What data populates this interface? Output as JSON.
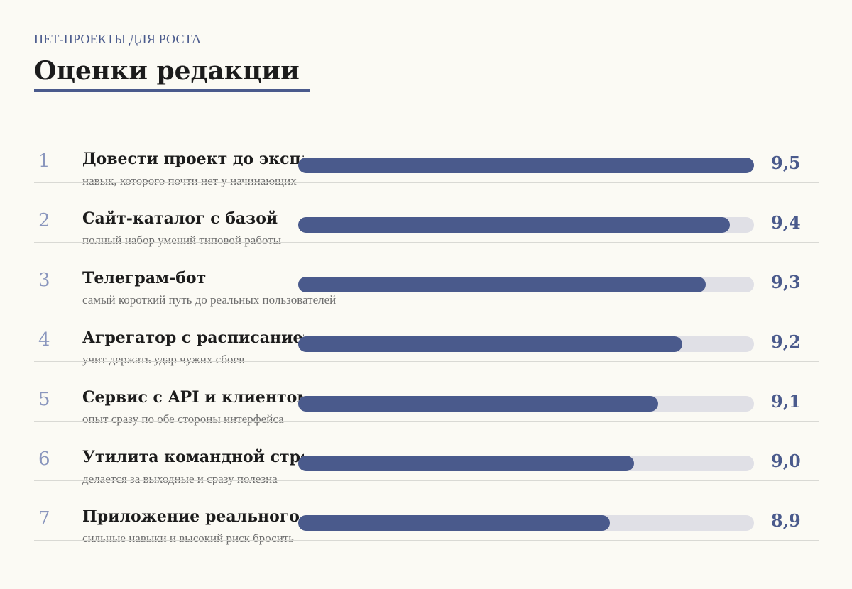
{
  "header": {
    "kicker": "Пет-проекты для роста",
    "title": "Оценки редакции"
  },
  "colors": {
    "accent": "#4a5a8c",
    "track": "#e0e0e6",
    "rank": "#8a96bd",
    "background": "#fbfaf4"
  },
  "chart_data": {
    "type": "bar",
    "orientation": "horizontal",
    "title": "Оценки редакции",
    "xlim": [
      7.6,
      9.5
    ],
    "grid": false,
    "categories": [
      "Довести проект до эксплуатации",
      "Сайт-каталог с базой",
      "Телеграм-бот",
      "Агрегатор с расписанием",
      "Сервис с API и клиентом",
      "Утилита командной строки",
      "Приложение реального времени"
    ],
    "values": [
      9.5,
      9.4,
      9.3,
      9.2,
      9.1,
      9.0,
      8.9
    ],
    "items": [
      {
        "rank": "1",
        "label": "Довести проект до эксплуатации",
        "sub": "навык, которого почти нет у начинающих",
        "value": 9.5,
        "value_label": "9,5"
      },
      {
        "rank": "2",
        "label": "Сайт-каталог с базой",
        "sub": "полный набор умений типовой работы",
        "value": 9.4,
        "value_label": "9,4"
      },
      {
        "rank": "3",
        "label": "Телеграм-бот",
        "sub": "самый короткий путь до реальных пользователей",
        "value": 9.3,
        "value_label": "9,3"
      },
      {
        "rank": "4",
        "label": "Агрегатор с расписанием",
        "sub": "учит держать удар чужих сбоев",
        "value": 9.2,
        "value_label": "9,2"
      },
      {
        "rank": "5",
        "label": "Сервис с API и клиентом",
        "sub": "опыт сразу по обе стороны интерфейса",
        "value": 9.1,
        "value_label": "9,1"
      },
      {
        "rank": "6",
        "label": "Утилита командной строки",
        "sub": "делается за выходные и сразу полезна",
        "value": 9.0,
        "value_label": "9,0"
      },
      {
        "rank": "7",
        "label": "Приложение реального времени",
        "sub": "сильные навыки и высокий риск бросить",
        "value": 8.9,
        "value_label": "8,9"
      }
    ]
  }
}
